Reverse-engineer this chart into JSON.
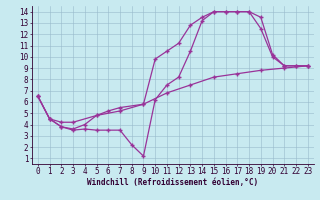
{
  "xlabel": "Windchill (Refroidissement éolien,°C)",
  "bg_color": "#c8eaf0",
  "line_color": "#993399",
  "grid_color": "#99bbcc",
  "axis_color": "#330033",
  "xlim": [
    -0.5,
    23.5
  ],
  "ylim": [
    0.5,
    14.5
  ],
  "xticks": [
    0,
    1,
    2,
    3,
    4,
    5,
    6,
    7,
    8,
    9,
    10,
    11,
    12,
    13,
    14,
    15,
    16,
    17,
    18,
    19,
    20,
    21,
    22,
    23
  ],
  "yticks": [
    1,
    2,
    3,
    4,
    5,
    6,
    7,
    8,
    9,
    10,
    11,
    12,
    13,
    14
  ],
  "line1_x": [
    0,
    1,
    2,
    3,
    4,
    5,
    6,
    7,
    8,
    9,
    10,
    11,
    12,
    13,
    14,
    15,
    16,
    17,
    18,
    19,
    20,
    21,
    22,
    23
  ],
  "line1_y": [
    6.5,
    4.5,
    3.8,
    3.5,
    3.6,
    3.5,
    3.5,
    3.5,
    2.2,
    1.2,
    6.2,
    7.5,
    8.2,
    10.5,
    13.2,
    14.0,
    14.0,
    14.0,
    14.0,
    13.5,
    10.2,
    9.2,
    9.2,
    9.2
  ],
  "line2_x": [
    0,
    1,
    2,
    3,
    4,
    5,
    6,
    7,
    9,
    10,
    11,
    12,
    13,
    14,
    15,
    16,
    17,
    18,
    19,
    20,
    21,
    22,
    23
  ],
  "line2_y": [
    6.5,
    4.5,
    3.8,
    3.6,
    4.0,
    4.8,
    5.2,
    5.5,
    5.8,
    9.8,
    10.5,
    11.2,
    12.8,
    13.5,
    14.0,
    14.0,
    14.0,
    14.0,
    12.5,
    10.0,
    9.2,
    9.2,
    9.2
  ],
  "line3_x": [
    0,
    1,
    2,
    3,
    5,
    7,
    9,
    11,
    13,
    15,
    17,
    19,
    21,
    23
  ],
  "line3_y": [
    6.5,
    4.5,
    4.2,
    4.2,
    4.8,
    5.2,
    5.8,
    6.8,
    7.5,
    8.2,
    8.5,
    8.8,
    9.0,
    9.2
  ],
  "tick_fontsize": 5.5,
  "xlabel_fontsize": 5.5
}
